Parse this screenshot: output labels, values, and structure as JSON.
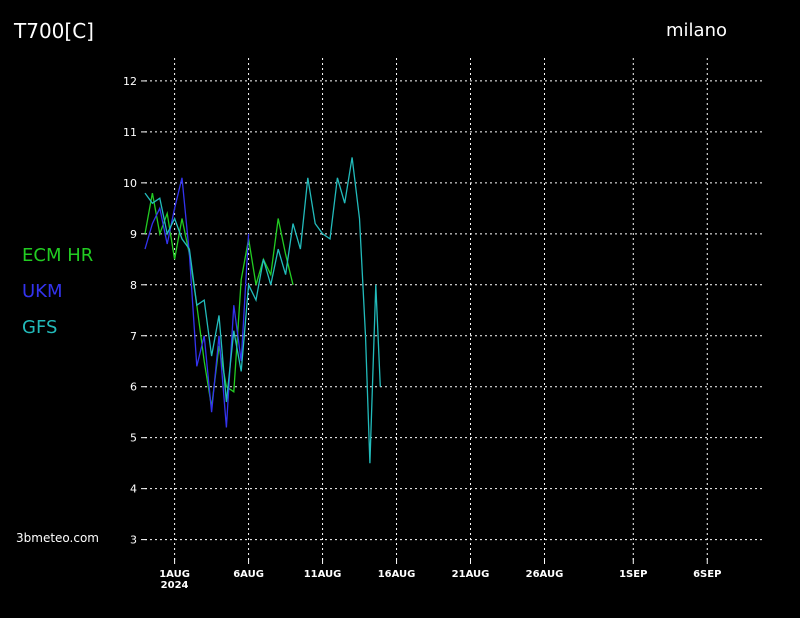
{
  "chart_data": {
    "type": "line",
    "title": "T700[C]",
    "location": "milano",
    "watermark": "3bmeteo.com",
    "xlim": [
      -2,
      39.7
    ],
    "ylim": [
      2.6,
      12.45
    ],
    "xticks": [
      {
        "value": 0,
        "label": "1AUG"
      },
      {
        "value": 5,
        "label": "6AUG"
      },
      {
        "value": 10,
        "label": "11AUG"
      },
      {
        "value": 15,
        "label": "16AUG"
      },
      {
        "value": 20,
        "label": "21AUG"
      },
      {
        "value": 25,
        "label": "26AUG"
      },
      {
        "value": 31,
        "label": "1SEP"
      },
      {
        "value": 36,
        "label": "6SEP"
      }
    ],
    "xtick_year": "2024",
    "yticks": [
      3,
      4,
      5,
      6,
      7,
      8,
      9,
      10,
      11,
      12
    ],
    "grid": true,
    "series": [
      {
        "name": "ECM HR",
        "color": "#22cc22",
        "x": [
          -2,
          -1.5,
          -1,
          -0.5,
          0,
          0.5,
          1,
          1.5,
          2,
          2.5,
          3,
          3.5,
          4,
          4.5,
          5,
          5.5,
          6,
          6.5,
          7,
          7.5,
          8
        ],
        "values": [
          9.0,
          9.8,
          9.0,
          9.4,
          8.5,
          9.3,
          8.6,
          7.6,
          6.5,
          5.6,
          6.8,
          6.0,
          5.9,
          8.1,
          8.9,
          8.0,
          8.5,
          8.2,
          9.3,
          8.6,
          8.0
        ]
      },
      {
        "name": "UKM",
        "color": "#3333ee",
        "x": [
          -2,
          -1.5,
          -1,
          -0.5,
          0,
          0.5,
          1,
          1.5,
          2,
          2.5,
          3,
          3.5,
          4,
          4.5,
          5
        ],
        "values": [
          8.7,
          9.2,
          9.5,
          8.8,
          9.5,
          10.1,
          8.6,
          6.4,
          7.0,
          5.5,
          7.0,
          5.2,
          7.6,
          6.5,
          9.0
        ]
      },
      {
        "name": "GFS",
        "color": "#22bbbb",
        "x": [
          -2,
          -1.5,
          -1,
          -0.5,
          0,
          0.5,
          1,
          1.5,
          2,
          2.5,
          3,
          3.5,
          4,
          4.5,
          5,
          5.5,
          6,
          6.5,
          7,
          7.5,
          8,
          8.5,
          9,
          9.5,
          10,
          10.5,
          11,
          11.5,
          12,
          12.5,
          12.9,
          13.2,
          13.6,
          13.9
        ],
        "values": [
          9.8,
          9.6,
          9.7,
          9.0,
          9.3,
          8.9,
          8.7,
          7.6,
          7.7,
          6.6,
          7.4,
          5.7,
          7.1,
          6.3,
          8.0,
          7.7,
          8.5,
          8.0,
          8.7,
          8.2,
          9.2,
          8.7,
          10.1,
          9.2,
          9.0,
          8.9,
          10.1,
          9.6,
          10.5,
          9.3,
          7.0,
          4.5,
          8.0,
          6.0
        ]
      }
    ]
  }
}
